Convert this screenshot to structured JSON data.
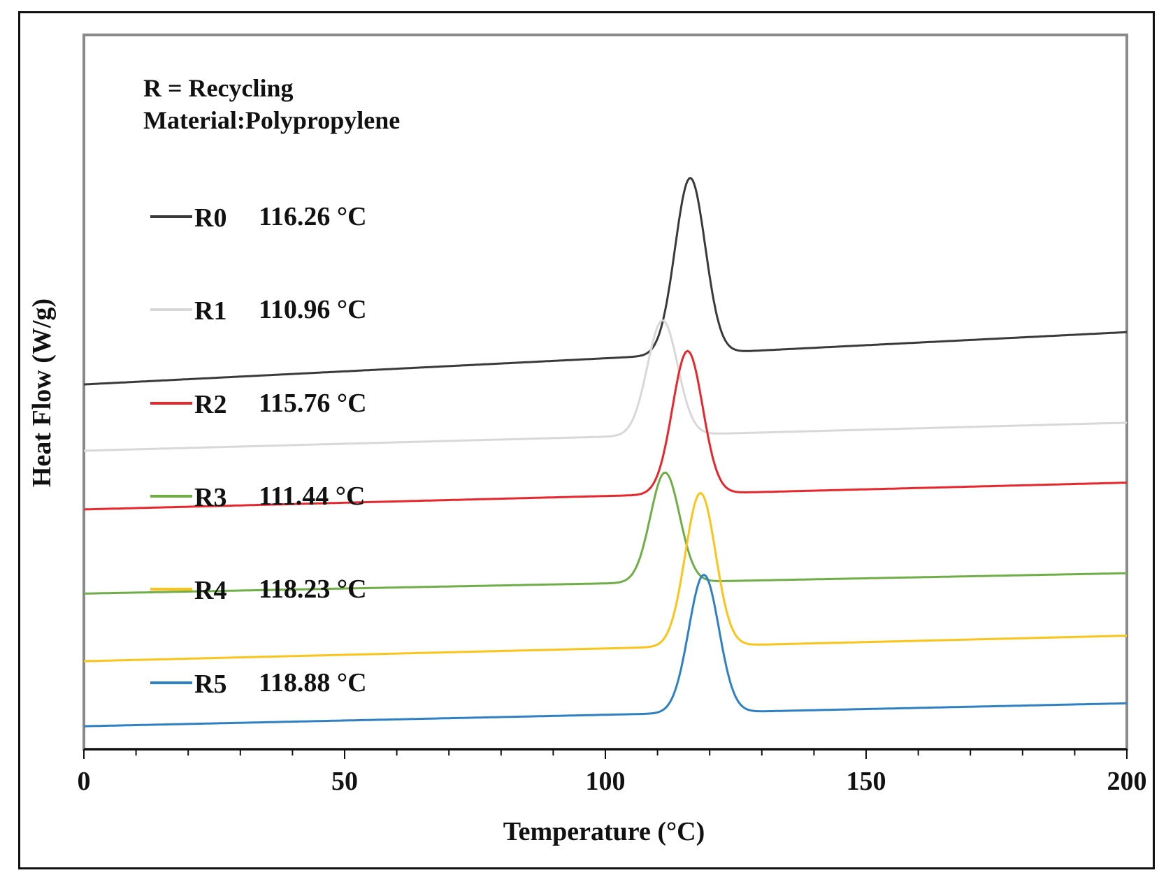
{
  "chart_data": {
    "type": "line",
    "title": "",
    "xlabel": "Temperature (°C)",
    "ylabel": "Heat Flow (W/g)",
    "xlim": [
      0,
      200
    ],
    "x_ticks": [
      "0",
      "50",
      "100",
      "150",
      "200"
    ],
    "annotation": {
      "line1": "R = Recycling",
      "line2": "Material:Polypropylene"
    },
    "series": [
      {
        "name": "R0",
        "peak_label": "116.26 °C",
        "peak_temp": 116.26,
        "color": "#3a3a3a",
        "baseline_start": 0.3,
        "baseline_end": 2.35,
        "peak_height": 6.9,
        "peak_width": 2.9
      },
      {
        "name": "R1",
        "peak_label": "110.96 °C",
        "peak_temp": 110.96,
        "color": "#d8d8d8",
        "baseline_start": -2.3,
        "baseline_end": -1.2,
        "peak_height": 4.5,
        "peak_width": 2.9
      },
      {
        "name": "R2",
        "peak_label": "115.76 °C",
        "peak_temp": 115.76,
        "color": "#e8262c",
        "baseline_start": -4.6,
        "baseline_end": -3.55,
        "peak_height": 5.6,
        "peak_width": 2.9
      },
      {
        "name": "R3",
        "peak_label": "111.44 °C",
        "peak_temp": 111.44,
        "color": "#6fad47",
        "baseline_start": -7.9,
        "baseline_end": -7.1,
        "peak_height": 4.3,
        "peak_width": 2.8
      },
      {
        "name": "R4",
        "peak_label": "118.23 °C",
        "peak_temp": 118.23,
        "color": "#fcc419",
        "baseline_start": -10.55,
        "baseline_end": -9.55,
        "peak_height": 6.0,
        "peak_width": 2.9
      },
      {
        "name": "R5",
        "peak_label": "118.88 °C",
        "peak_temp": 118.88,
        "color": "#2e80c4",
        "baseline_start": -13.1,
        "baseline_end": -12.2,
        "peak_height": 5.4,
        "peak_width": 2.9
      }
    ],
    "ylim": [
      -14,
      14
    ]
  }
}
